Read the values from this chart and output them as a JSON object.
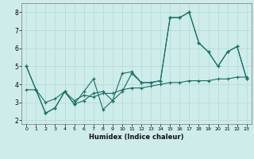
{
  "title": "",
  "xlabel": "Humidex (Indice chaleur)",
  "bg_color": "#ceecea",
  "grid_color": "#b8dcd8",
  "line_color": "#1a6e64",
  "xlim": [
    -0.5,
    23.5
  ],
  "ylim": [
    1.8,
    8.5
  ],
  "yticks": [
    2,
    3,
    4,
    5,
    6,
    7,
    8
  ],
  "xticks": [
    0,
    1,
    2,
    3,
    4,
    5,
    6,
    7,
    8,
    9,
    10,
    11,
    12,
    13,
    14,
    15,
    16,
    17,
    18,
    19,
    20,
    21,
    22,
    23
  ],
  "line1_x": [
    0,
    1,
    2,
    3,
    4,
    5,
    6,
    7,
    8,
    9,
    10,
    11,
    12,
    13,
    14,
    15,
    16,
    17,
    18,
    19,
    20,
    21,
    22,
    23
  ],
  "line1_y": [
    5.0,
    3.7,
    2.4,
    2.7,
    3.6,
    2.9,
    3.6,
    4.3,
    2.6,
    3.1,
    4.6,
    4.7,
    4.1,
    4.1,
    4.2,
    7.7,
    7.7,
    8.0,
    6.3,
    5.8,
    5.0,
    5.8,
    6.1,
    4.3
  ],
  "line2_x": [
    0,
    1,
    2,
    3,
    4,
    5,
    6,
    7,
    8,
    9,
    10,
    11,
    12,
    13,
    14,
    15,
    16,
    17,
    18,
    19,
    20,
    21,
    22,
    23
  ],
  "line2_y": [
    5.0,
    3.7,
    2.4,
    2.7,
    3.6,
    2.9,
    3.1,
    3.5,
    3.6,
    3.1,
    3.6,
    4.6,
    4.1,
    4.1,
    4.2,
    7.7,
    7.7,
    8.0,
    6.3,
    5.8,
    5.0,
    5.8,
    6.1,
    4.3
  ],
  "line3_x": [
    0,
    1,
    2,
    3,
    4,
    5,
    6,
    7,
    8,
    9,
    10,
    11,
    12,
    13,
    14,
    15,
    16,
    17,
    18,
    19,
    20,
    21,
    22,
    23
  ],
  "line3_y": [
    3.7,
    3.7,
    3.0,
    3.2,
    3.6,
    3.1,
    3.4,
    3.3,
    3.5,
    3.5,
    3.7,
    3.8,
    3.8,
    3.9,
    4.0,
    4.1,
    4.1,
    4.2,
    4.2,
    4.2,
    4.3,
    4.3,
    4.4,
    4.4
  ]
}
